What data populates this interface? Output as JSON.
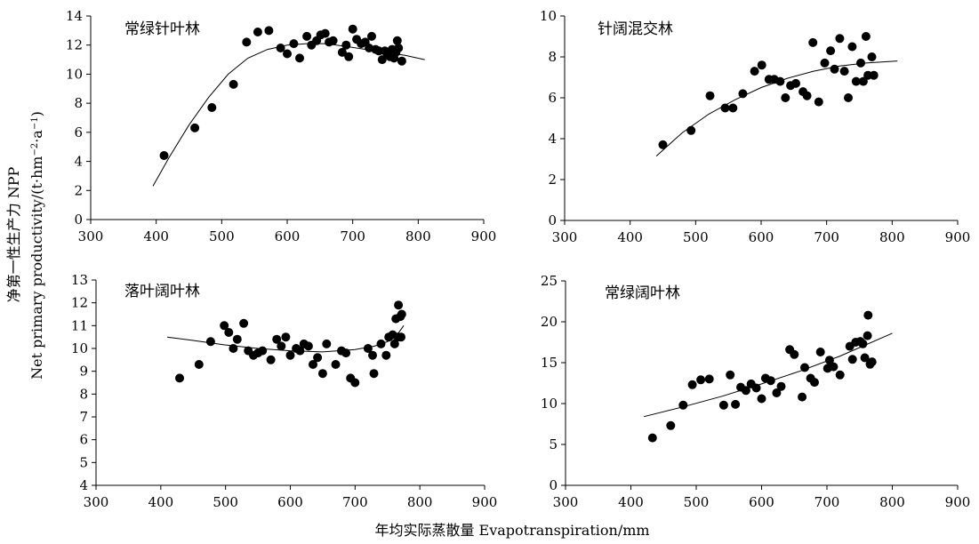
{
  "figure": {
    "y_title_cn": "净第一性生产力 NPP",
    "y_title_en_prefix": "Net primary productivity/(t·hm",
    "y_title_en_sup1": "−2",
    "y_title_en_mid": "·a",
    "y_title_en_sup2": "−1",
    "y_title_en_suffix": ")",
    "x_title": "年均实际蒸散量 Evapotranspiration/mm"
  },
  "chart_data": [
    {
      "type": "scatter",
      "title": "常绿针叶林",
      "xlim": [
        300,
        900
      ],
      "ylim": [
        0,
        14
      ],
      "xticks": [
        "300",
        "400",
        "500",
        "600",
        "700",
        "800",
        "900"
      ],
      "yticks": [
        "0",
        "2",
        "4",
        "6",
        "8",
        "10",
        "12",
        "14"
      ],
      "points": [
        [
          412,
          4.4
        ],
        [
          459,
          6.3
        ],
        [
          485,
          7.7
        ],
        [
          518,
          9.3
        ],
        [
          538,
          12.2
        ],
        [
          555,
          12.9
        ],
        [
          572,
          13.0
        ],
        [
          590,
          11.8
        ],
        [
          600,
          11.4
        ],
        [
          610,
          12.1
        ],
        [
          619,
          11.1
        ],
        [
          630,
          12.6
        ],
        [
          637,
          12.0
        ],
        [
          645,
          12.3
        ],
        [
          651,
          12.7
        ],
        [
          658,
          12.8
        ],
        [
          664,
          12.2
        ],
        [
          670,
          12.3
        ],
        [
          684,
          11.5
        ],
        [
          690,
          12.0
        ],
        [
          694,
          11.2
        ],
        [
          700,
          13.1
        ],
        [
          706,
          12.4
        ],
        [
          713,
          12.1
        ],
        [
          719,
          12.2
        ],
        [
          725,
          11.8
        ],
        [
          729,
          12.6
        ],
        [
          735,
          11.7
        ],
        [
          740,
          11.6
        ],
        [
          745,
          11.0
        ],
        [
          749,
          11.6
        ],
        [
          753,
          11.4
        ],
        [
          757,
          11.2
        ],
        [
          760,
          11.7
        ],
        [
          763,
          11.1
        ],
        [
          766,
          11.5
        ],
        [
          768,
          12.3
        ],
        [
          770,
          11.8
        ],
        [
          775,
          10.9
        ]
      ],
      "trend": {
        "x": [
          395,
          420,
          450,
          480,
          510,
          540,
          570,
          600,
          630,
          660,
          690,
          720,
          750,
          780,
          810
        ],
        "y": [
          2.3,
          4.3,
          6.5,
          8.4,
          10.0,
          11.1,
          11.7,
          12.0,
          12.1,
          12.1,
          11.9,
          11.7,
          11.5,
          11.3,
          11.0
        ]
      }
    },
    {
      "type": "scatter",
      "title": "针阔混交林",
      "xlim": [
        300,
        900
      ],
      "ylim": [
        0,
        10
      ],
      "xticks": [
        "300",
        "400",
        "500",
        "600",
        "700",
        "800",
        "900"
      ],
      "yticks": [
        "0",
        "2",
        "4",
        "6",
        "8",
        "10"
      ],
      "points": [
        [
          450,
          3.7
        ],
        [
          493,
          4.4
        ],
        [
          522,
          6.1
        ],
        [
          545,
          5.5
        ],
        [
          557,
          5.5
        ],
        [
          572,
          6.2
        ],
        [
          590,
          7.3
        ],
        [
          601,
          7.6
        ],
        [
          612,
          6.9
        ],
        [
          620,
          6.9
        ],
        [
          629,
          6.8
        ],
        [
          637,
          6.0
        ],
        [
          645,
          6.6
        ],
        [
          653,
          6.7
        ],
        [
          664,
          6.3
        ],
        [
          670,
          6.1
        ],
        [
          679,
          8.7
        ],
        [
          688,
          5.8
        ],
        [
          697,
          7.7
        ],
        [
          706,
          8.3
        ],
        [
          712,
          7.4
        ],
        [
          720,
          8.9
        ],
        [
          727,
          7.3
        ],
        [
          733,
          6.0
        ],
        [
          739,
          8.5
        ],
        [
          745,
          6.8
        ],
        [
          752,
          7.7
        ],
        [
          756,
          6.8
        ],
        [
          760,
          9.0
        ],
        [
          763,
          7.1
        ],
        [
          769,
          8.0
        ],
        [
          772,
          7.1
        ]
      ],
      "trend": {
        "x": [
          440,
          480,
          520,
          560,
          600,
          640,
          680,
          720,
          760,
          808
        ],
        "y": [
          3.15,
          4.3,
          5.2,
          5.9,
          6.5,
          6.95,
          7.3,
          7.55,
          7.7,
          7.8
        ]
      }
    },
    {
      "type": "scatter",
      "title": "落叶阔叶林",
      "xlim": [
        300,
        900
      ],
      "ylim": [
        4,
        13
      ],
      "xticks": [
        "300",
        "400",
        "500",
        "600",
        "700",
        "800",
        "900"
      ],
      "yticks": [
        "4",
        "5",
        "6",
        "7",
        "8",
        "9",
        "10",
        "11",
        "12",
        "13"
      ],
      "points": [
        [
          429,
          8.7
        ],
        [
          459,
          9.3
        ],
        [
          477,
          10.3
        ],
        [
          498,
          11.0
        ],
        [
          505,
          10.7
        ],
        [
          512,
          10.0
        ],
        [
          518,
          10.4
        ],
        [
          528,
          11.1
        ],
        [
          535,
          9.9
        ],
        [
          543,
          9.7
        ],
        [
          550,
          9.8
        ],
        [
          557,
          9.9
        ],
        [
          570,
          9.5
        ],
        [
          579,
          10.4
        ],
        [
          586,
          10.1
        ],
        [
          593,
          10.5
        ],
        [
          600,
          9.7
        ],
        [
          609,
          10.0
        ],
        [
          615,
          9.9
        ],
        [
          621,
          10.2
        ],
        [
          628,
          10.1
        ],
        [
          635,
          9.3
        ],
        [
          642,
          9.6
        ],
        [
          650,
          8.9
        ],
        [
          656,
          10.2
        ],
        [
          670,
          9.3
        ],
        [
          679,
          9.9
        ],
        [
          686,
          9.8
        ],
        [
          693,
          8.7
        ],
        [
          700,
          8.5
        ],
        [
          720,
          10.0
        ],
        [
          727,
          9.7
        ],
        [
          729,
          8.9
        ],
        [
          740,
          10.2
        ],
        [
          748,
          9.7
        ],
        [
          752,
          10.5
        ],
        [
          758,
          10.6
        ],
        [
          761,
          10.2
        ],
        [
          763,
          11.3
        ],
        [
          766,
          10.5
        ],
        [
          767,
          11.9
        ],
        [
          770,
          11.4
        ],
        [
          772,
          11.5
        ],
        [
          771,
          10.5
        ]
      ],
      "trend": {
        "x": [
          410,
          450,
          500,
          550,
          600,
          650,
          700,
          730,
          750,
          765,
          775
        ],
        "y": [
          10.5,
          10.35,
          10.15,
          10.0,
          9.9,
          9.85,
          9.95,
          10.1,
          10.3,
          10.6,
          11.0
        ]
      }
    },
    {
      "type": "scatter",
      "title": "常绿阔叶林",
      "xlim": [
        300,
        900
      ],
      "ylim": [
        0,
        25
      ],
      "xticks": [
        "300",
        "400",
        "500",
        "600",
        "700",
        "800",
        "900"
      ],
      "yticks": [
        "0",
        "5",
        "10",
        "15",
        "20",
        "25"
      ],
      "points": [
        [
          433,
          5.8
        ],
        [
          461,
          7.3
        ],
        [
          480,
          9.8
        ],
        [
          494,
          12.3
        ],
        [
          507,
          12.9
        ],
        [
          520,
          13.0
        ],
        [
          542,
          9.8
        ],
        [
          552,
          13.5
        ],
        [
          560,
          9.9
        ],
        [
          568,
          12.0
        ],
        [
          576,
          11.6
        ],
        [
          584,
          12.4
        ],
        [
          592,
          11.9
        ],
        [
          600,
          10.6
        ],
        [
          606,
          13.1
        ],
        [
          614,
          12.8
        ],
        [
          623,
          11.3
        ],
        [
          630,
          12.1
        ],
        [
          643,
          16.6
        ],
        [
          650,
          16.0
        ],
        [
          662,
          10.8
        ],
        [
          666,
          14.4
        ],
        [
          675,
          13.1
        ],
        [
          681,
          12.6
        ],
        [
          690,
          16.3
        ],
        [
          701,
          14.3
        ],
        [
          704,
          15.3
        ],
        [
          710,
          14.5
        ],
        [
          720,
          13.5
        ],
        [
          735,
          17.0
        ],
        [
          739,
          15.4
        ],
        [
          744,
          17.5
        ],
        [
          751,
          17.6
        ],
        [
          755,
          17.3
        ],
        [
          758,
          15.6
        ],
        [
          762,
          18.3
        ],
        [
          763,
          20.8
        ],
        [
          766,
          14.8
        ],
        [
          769,
          15.1
        ]
      ],
      "trend": {
        "x": [
          420,
          480,
          540,
          600,
          660,
          720,
          800
        ],
        "y": [
          8.4,
          9.6,
          10.9,
          12.4,
          14.0,
          15.8,
          18.6
        ]
      }
    }
  ]
}
